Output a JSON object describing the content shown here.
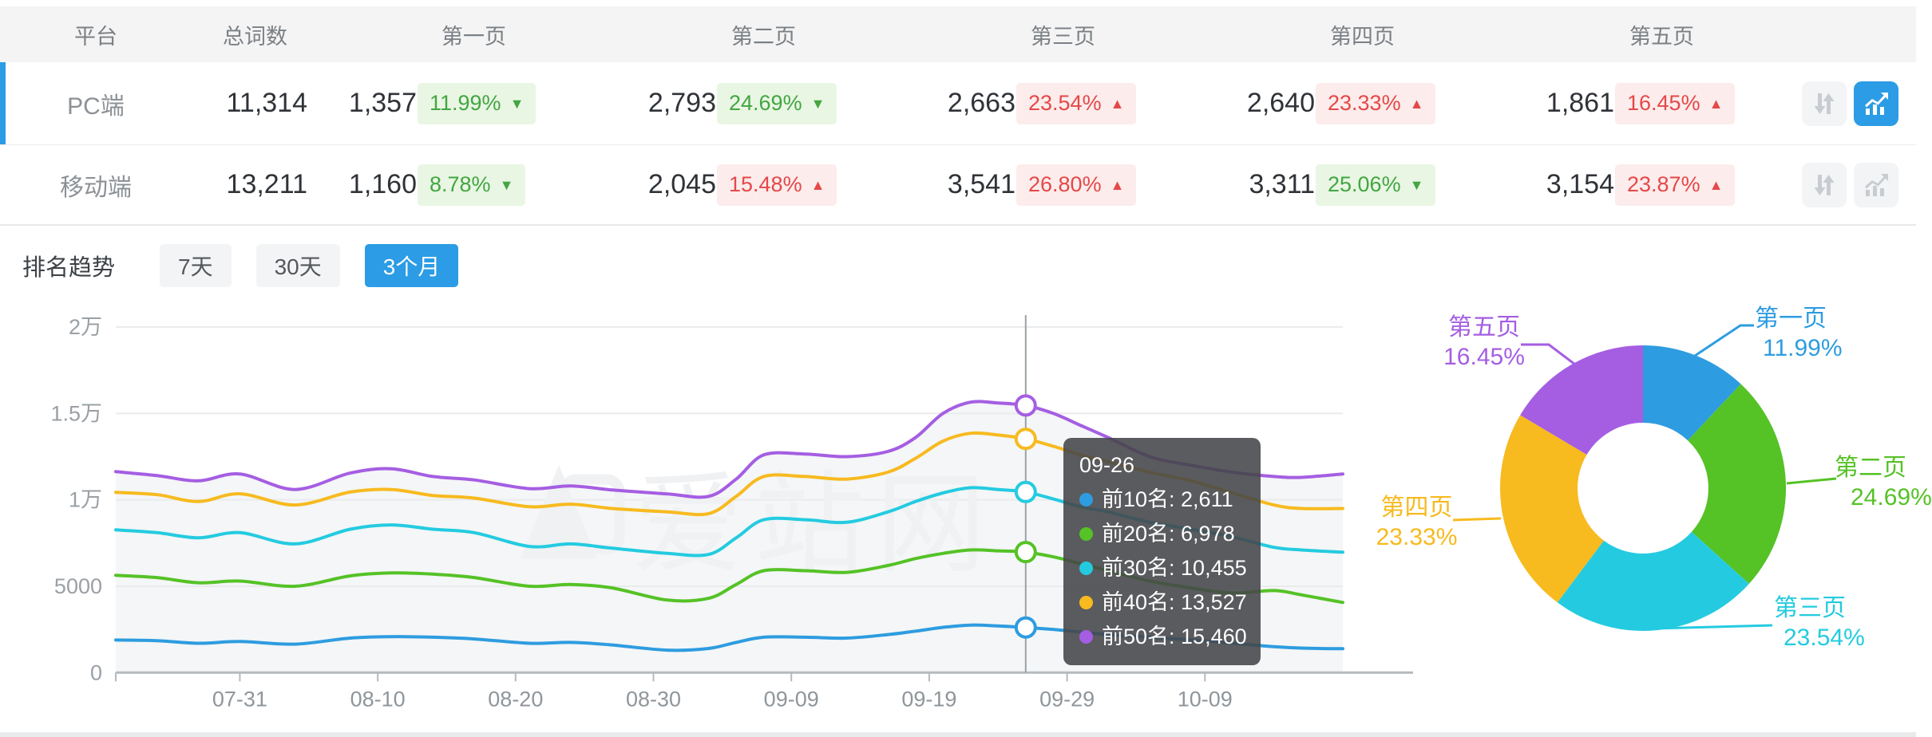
{
  "table": {
    "columns": [
      "平台",
      "总词数",
      "第一页",
      "第二页",
      "第三页",
      "第四页",
      "第五页"
    ],
    "rows": [
      {
        "platform": "PC端",
        "selected": true,
        "trend_active": true,
        "total": "11,314",
        "pages": [
          {
            "count": "1,357",
            "pct": "11.99%",
            "dir": "down",
            "tone": "green"
          },
          {
            "count": "2,793",
            "pct": "24.69%",
            "dir": "down",
            "tone": "green"
          },
          {
            "count": "2,663",
            "pct": "23.54%",
            "dir": "up",
            "tone": "red"
          },
          {
            "count": "2,640",
            "pct": "23.33%",
            "dir": "up",
            "tone": "red"
          },
          {
            "count": "1,861",
            "pct": "16.45%",
            "dir": "up",
            "tone": "red"
          }
        ]
      },
      {
        "platform": "移动端",
        "selected": false,
        "trend_active": false,
        "total": "13,211",
        "pages": [
          {
            "count": "1,160",
            "pct": "8.78%",
            "dir": "down",
            "tone": "green"
          },
          {
            "count": "2,045",
            "pct": "15.48%",
            "dir": "up",
            "tone": "red"
          },
          {
            "count": "3,541",
            "pct": "26.80%",
            "dir": "up",
            "tone": "red"
          },
          {
            "count": "3,311",
            "pct": "25.06%",
            "dir": "down",
            "tone": "green"
          },
          {
            "count": "3,154",
            "pct": "23.87%",
            "dir": "up",
            "tone": "red"
          }
        ]
      }
    ],
    "icons": {
      "sort": "up-down-arrows",
      "trend": "bar-line-chart"
    }
  },
  "trend": {
    "title": "排名趋势",
    "ranges": [
      {
        "label": "7天",
        "active": false
      },
      {
        "label": "30天",
        "active": false
      },
      {
        "label": "3个月",
        "active": true
      }
    ]
  },
  "watermark": "爱站网",
  "tooltip": {
    "date": "09-26",
    "rows": [
      {
        "label": "前10名",
        "value": "2,611"
      },
      {
        "label": "前20名",
        "value": "6,978"
      },
      {
        "label": "前30名",
        "value": "10,455"
      },
      {
        "label": "前40名",
        "value": "13,527"
      },
      {
        "label": "前50名",
        "value": "15,460"
      }
    ]
  },
  "colors": {
    "accent": "#2b9ce5",
    "badge_green_text": "#43a643",
    "badge_green_bg": "#e9f6e3",
    "badge_red_text": "#e54848",
    "badge_red_bg": "#fcecec",
    "grid": "#e9ebec",
    "axis": "#b5babe",
    "crosshair": "#9aa0a4",
    "area_fill": "#f4f6f7",
    "watermark": "#eff1f3"
  },
  "chart_data": [
    {
      "type": "line",
      "title": "排名趋势 3个月",
      "x_domain_days": 89,
      "x_ticks": [
        {
          "label": "07-31",
          "day": 9
        },
        {
          "label": "08-10",
          "day": 19
        },
        {
          "label": "08-20",
          "day": 29
        },
        {
          "label": "08-30",
          "day": 39
        },
        {
          "label": "09-09",
          "day": 49
        },
        {
          "label": "09-19",
          "day": 59
        },
        {
          "label": "09-29",
          "day": 69
        },
        {
          "label": "10-09",
          "day": 79
        }
      ],
      "ylim": [
        0,
        20000
      ],
      "y_ticks": [
        {
          "label": "0",
          "value": 0
        },
        {
          "label": "5000",
          "value": 5000
        },
        {
          "label": "1万",
          "value": 10000
        },
        {
          "label": "1.5万",
          "value": 15000
        },
        {
          "label": "2万",
          "value": 20000
        }
      ],
      "highlight_date": "09-26",
      "highlight_day": 66,
      "series": [
        {
          "name": "前10名",
          "color": "#2e9ce0",
          "points": [
            [
              0,
              1890
            ],
            [
              3,
              1850
            ],
            [
              6,
              1700
            ],
            [
              9,
              1800
            ],
            [
              13,
              1650
            ],
            [
              17,
              2000
            ],
            [
              20,
              2080
            ],
            [
              23,
              2050
            ],
            [
              26,
              1950
            ],
            [
              30,
              1700
            ],
            [
              33,
              1750
            ],
            [
              36,
              1600
            ],
            [
              40,
              1300
            ],
            [
              43,
              1400
            ],
            [
              45,
              1750
            ],
            [
              47,
              2050
            ],
            [
              50,
              2050
            ],
            [
              53,
              2000
            ],
            [
              56,
              2200
            ],
            [
              58,
              2400
            ],
            [
              60,
              2620
            ],
            [
              62,
              2750
            ],
            [
              64,
              2700
            ],
            [
              66,
              2611
            ],
            [
              68,
              2500
            ],
            [
              70,
              2350
            ],
            [
              72,
              2200
            ],
            [
              75,
              2050
            ],
            [
              78,
              1900
            ],
            [
              81,
              1700
            ],
            [
              84,
              1500
            ],
            [
              86,
              1420
            ],
            [
              89,
              1385
            ]
          ]
        },
        {
          "name": "前20名",
          "color": "#55c226",
          "points": [
            [
              0,
              5630
            ],
            [
              3,
              5500
            ],
            [
              6,
              5200
            ],
            [
              9,
              5300
            ],
            [
              13,
              5000
            ],
            [
              17,
              5600
            ],
            [
              20,
              5770
            ],
            [
              23,
              5700
            ],
            [
              26,
              5500
            ],
            [
              30,
              5000
            ],
            [
              33,
              5100
            ],
            [
              36,
              4900
            ],
            [
              40,
              4200
            ],
            [
              43,
              4300
            ],
            [
              45,
              5100
            ],
            [
              47,
              5900
            ],
            [
              50,
              5900
            ],
            [
              53,
              5800
            ],
            [
              56,
              6200
            ],
            [
              58,
              6600
            ],
            [
              60,
              6900
            ],
            [
              62,
              7100
            ],
            [
              64,
              7050
            ],
            [
              66,
              6978
            ],
            [
              68,
              6700
            ],
            [
              70,
              6300
            ],
            [
              72,
              5900
            ],
            [
              75,
              5300
            ],
            [
              78,
              4900
            ],
            [
              81,
              4600
            ],
            [
              84,
              4750
            ],
            [
              86,
              4500
            ],
            [
              89,
              4060
            ]
          ]
        },
        {
          "name": "前30名",
          "color": "#24cbe0",
          "points": [
            [
              0,
              8260
            ],
            [
              3,
              8100
            ],
            [
              6,
              7800
            ],
            [
              9,
              8100
            ],
            [
              13,
              7450
            ],
            [
              17,
              8300
            ],
            [
              20,
              8550
            ],
            [
              23,
              8300
            ],
            [
              26,
              8100
            ],
            [
              30,
              7300
            ],
            [
              33,
              7450
            ],
            [
              36,
              7200
            ],
            [
              40,
              6900
            ],
            [
              43,
              6840
            ],
            [
              45,
              7800
            ],
            [
              47,
              8850
            ],
            [
              50,
              8850
            ],
            [
              53,
              8700
            ],
            [
              56,
              9300
            ],
            [
              58,
              9900
            ],
            [
              60,
              10400
            ],
            [
              62,
              10700
            ],
            [
              64,
              10600
            ],
            [
              66,
              10455
            ],
            [
              68,
              10050
            ],
            [
              70,
              9600
            ],
            [
              72,
              9300
            ],
            [
              75,
              8700
            ],
            [
              78,
              8300
            ],
            [
              81,
              7850
            ],
            [
              84,
              7250
            ],
            [
              86,
              7100
            ],
            [
              89,
              6970
            ]
          ]
        },
        {
          "name": "前40名",
          "color": "#f7ba1f",
          "points": [
            [
              0,
              10430
            ],
            [
              3,
              10300
            ],
            [
              6,
              9900
            ],
            [
              9,
              10350
            ],
            [
              13,
              9700
            ],
            [
              17,
              10450
            ],
            [
              20,
              10600
            ],
            [
              23,
              10250
            ],
            [
              26,
              10100
            ],
            [
              30,
              9600
            ],
            [
              33,
              9750
            ],
            [
              36,
              9500
            ],
            [
              40,
              9300
            ],
            [
              43,
              9200
            ],
            [
              45,
              10200
            ],
            [
              47,
              11350
            ],
            [
              50,
              11350
            ],
            [
              53,
              11200
            ],
            [
              56,
              11600
            ],
            [
              58,
              12400
            ],
            [
              60,
              13400
            ],
            [
              62,
              13850
            ],
            [
              64,
              13750
            ],
            [
              66,
              13527
            ],
            [
              68,
              13100
            ],
            [
              70,
              12600
            ],
            [
              72,
              12200
            ],
            [
              75,
              11600
            ],
            [
              78,
              11100
            ],
            [
              81,
              10400
            ],
            [
              84,
              9700
            ],
            [
              86,
              9500
            ],
            [
              89,
              9500
            ]
          ]
        },
        {
          "name": "前50名",
          "color": "#a55ee2",
          "points": [
            [
              0,
              11630
            ],
            [
              3,
              11400
            ],
            [
              6,
              11100
            ],
            [
              9,
              11500
            ],
            [
              13,
              10600
            ],
            [
              17,
              11550
            ],
            [
              20,
              11800
            ],
            [
              23,
              11350
            ],
            [
              26,
              11150
            ],
            [
              30,
              10650
            ],
            [
              33,
              10800
            ],
            [
              36,
              10570
            ],
            [
              40,
              10340
            ],
            [
              43,
              10200
            ],
            [
              45,
              11200
            ],
            [
              47,
              12600
            ],
            [
              50,
              12650
            ],
            [
              53,
              12500
            ],
            [
              56,
              12800
            ],
            [
              58,
              13600
            ],
            [
              60,
              15000
            ],
            [
              62,
              15650
            ],
            [
              64,
              15600
            ],
            [
              66,
              15460
            ],
            [
              68,
              15000
            ],
            [
              70,
              14300
            ],
            [
              72,
              13600
            ],
            [
              75,
              12500
            ],
            [
              78,
              12000
            ],
            [
              81,
              11600
            ],
            [
              84,
              11350
            ],
            [
              86,
              11300
            ],
            [
              89,
              11500
            ]
          ]
        }
      ]
    },
    {
      "type": "pie",
      "donut": true,
      "labels": [
        "第一页",
        "第二页",
        "第三页",
        "第四页",
        "第五页"
      ],
      "values": [
        11.99,
        24.69,
        23.54,
        23.33,
        16.45
      ],
      "percent_labels": [
        "11.99%",
        "24.69%",
        "23.54%",
        "23.33%",
        "16.45%"
      ],
      "colors": [
        "#2e9ce0",
        "#55c226",
        "#24cbe0",
        "#f7ba1f",
        "#a55ee2"
      ]
    }
  ]
}
